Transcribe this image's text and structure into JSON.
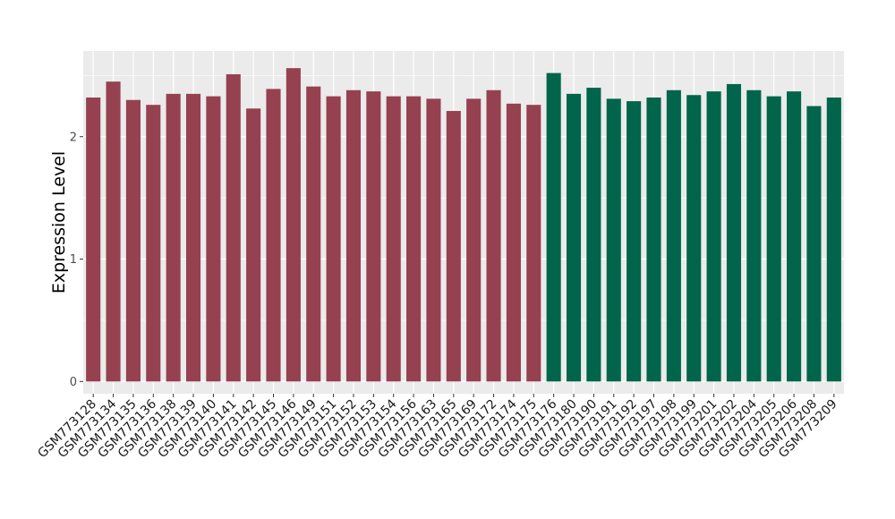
{
  "chart_data": {
    "type": "bar",
    "ylabel": "Expression Level",
    "xlabel": "",
    "ylim": [
      -0.1,
      2.7
    ],
    "y_ticks": [
      0,
      1,
      2
    ],
    "grid": true,
    "background": "#EBEBEB",
    "categories": [
      "GSM773128",
      "GSM773134",
      "GSM773135",
      "GSM773136",
      "GSM773138",
      "GSM773139",
      "GSM773140",
      "GSM773141",
      "GSM773142",
      "GSM773145",
      "GSM773146",
      "GSM773149",
      "GSM773151",
      "GSM773152",
      "GSM773153",
      "GSM773154",
      "GSM773156",
      "GSM773163",
      "GSM773165",
      "GSM773169",
      "GSM773172",
      "GSM773174",
      "GSM773175",
      "GSM773176",
      "GSM773180",
      "GSM773190",
      "GSM773191",
      "GSM773192",
      "GSM773197",
      "GSM773198",
      "GSM773199",
      "GSM773201",
      "GSM773202",
      "GSM773204",
      "GSM773205",
      "GSM773206",
      "GSM773208",
      "GSM773209"
    ],
    "values": [
      2.32,
      2.45,
      2.3,
      2.26,
      2.35,
      2.35,
      2.33,
      2.51,
      2.23,
      2.39,
      2.56,
      2.41,
      2.33,
      2.38,
      2.37,
      2.33,
      2.33,
      2.31,
      2.21,
      2.31,
      2.38,
      2.27,
      2.26,
      2.52,
      2.35,
      2.4,
      2.31,
      2.29,
      2.32,
      2.38,
      2.34,
      2.37,
      2.43,
      2.38,
      2.33,
      2.37,
      2.25,
      2.32
    ],
    "groups": [
      0,
      0,
      0,
      0,
      0,
      0,
      0,
      0,
      0,
      0,
      0,
      0,
      0,
      0,
      0,
      0,
      0,
      0,
      0,
      0,
      0,
      0,
      0,
      1,
      1,
      1,
      1,
      1,
      1,
      1,
      1,
      1,
      1,
      1,
      1,
      1,
      1,
      1
    ],
    "group_colors": [
      "#96414F",
      "#00654A"
    ]
  }
}
